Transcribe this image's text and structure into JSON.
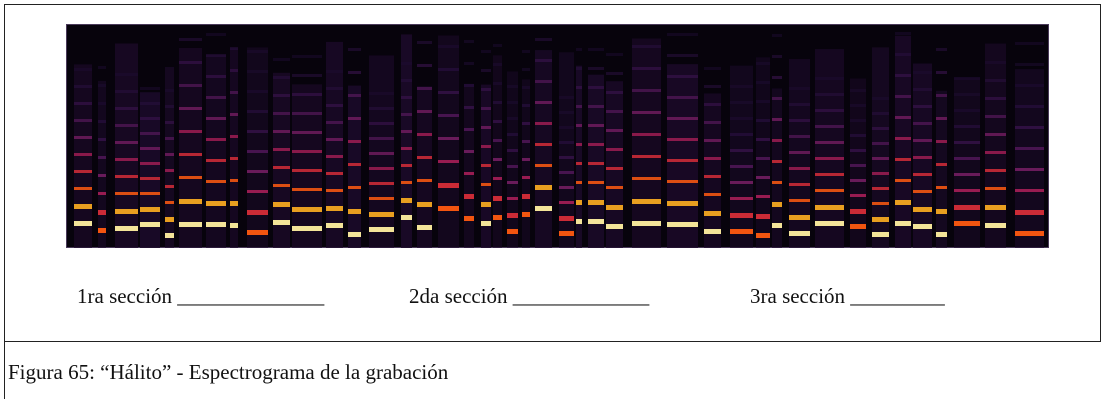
{
  "figure": {
    "sections": [
      "1ra sección ______________",
      "2da sección _____________",
      "3ra sección _________"
    ],
    "caption": "Figura 65: “Hálito” - Espectrograma de la grabación"
  }
}
